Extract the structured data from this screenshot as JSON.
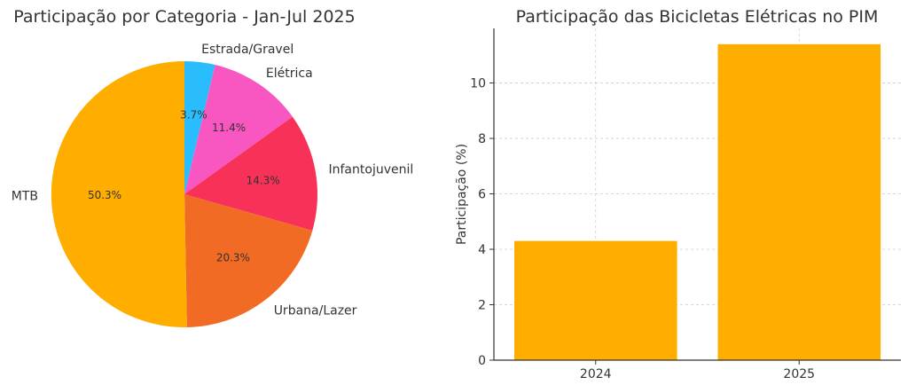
{
  "chart_data": [
    {
      "type": "pie",
      "title": "Participação por Categoria - Jan-Jul 2025",
      "categories": [
        "Estrada/Gravel",
        "Elétrica",
        "Infantojuvenil",
        "Urbana/Lazer",
        "MTB"
      ],
      "values": [
        3.7,
        11.4,
        14.3,
        20.3,
        50.3
      ],
      "value_labels": [
        "3.7%",
        "11.4%",
        "14.3%",
        "20.3%",
        "50.3%"
      ],
      "colors": [
        "#29bdfd",
        "#f857c1",
        "#f73157",
        "#f26b24",
        "#ffae00"
      ],
      "start_angle": "top, clockwise"
    },
    {
      "type": "bar",
      "title": "Participação das Bicicletas Elétricas no PIM",
      "categories": [
        "2024",
        "2025"
      ],
      "values": [
        4.3,
        11.4
      ],
      "xlabel": "",
      "ylabel": "Participação (%)",
      "ylim": [
        0,
        11.97
      ],
      "yticks": [
        "0",
        "2",
        "4",
        "6",
        "8",
        "10"
      ],
      "bar_color": "#ffae00",
      "grid": true
    }
  ]
}
